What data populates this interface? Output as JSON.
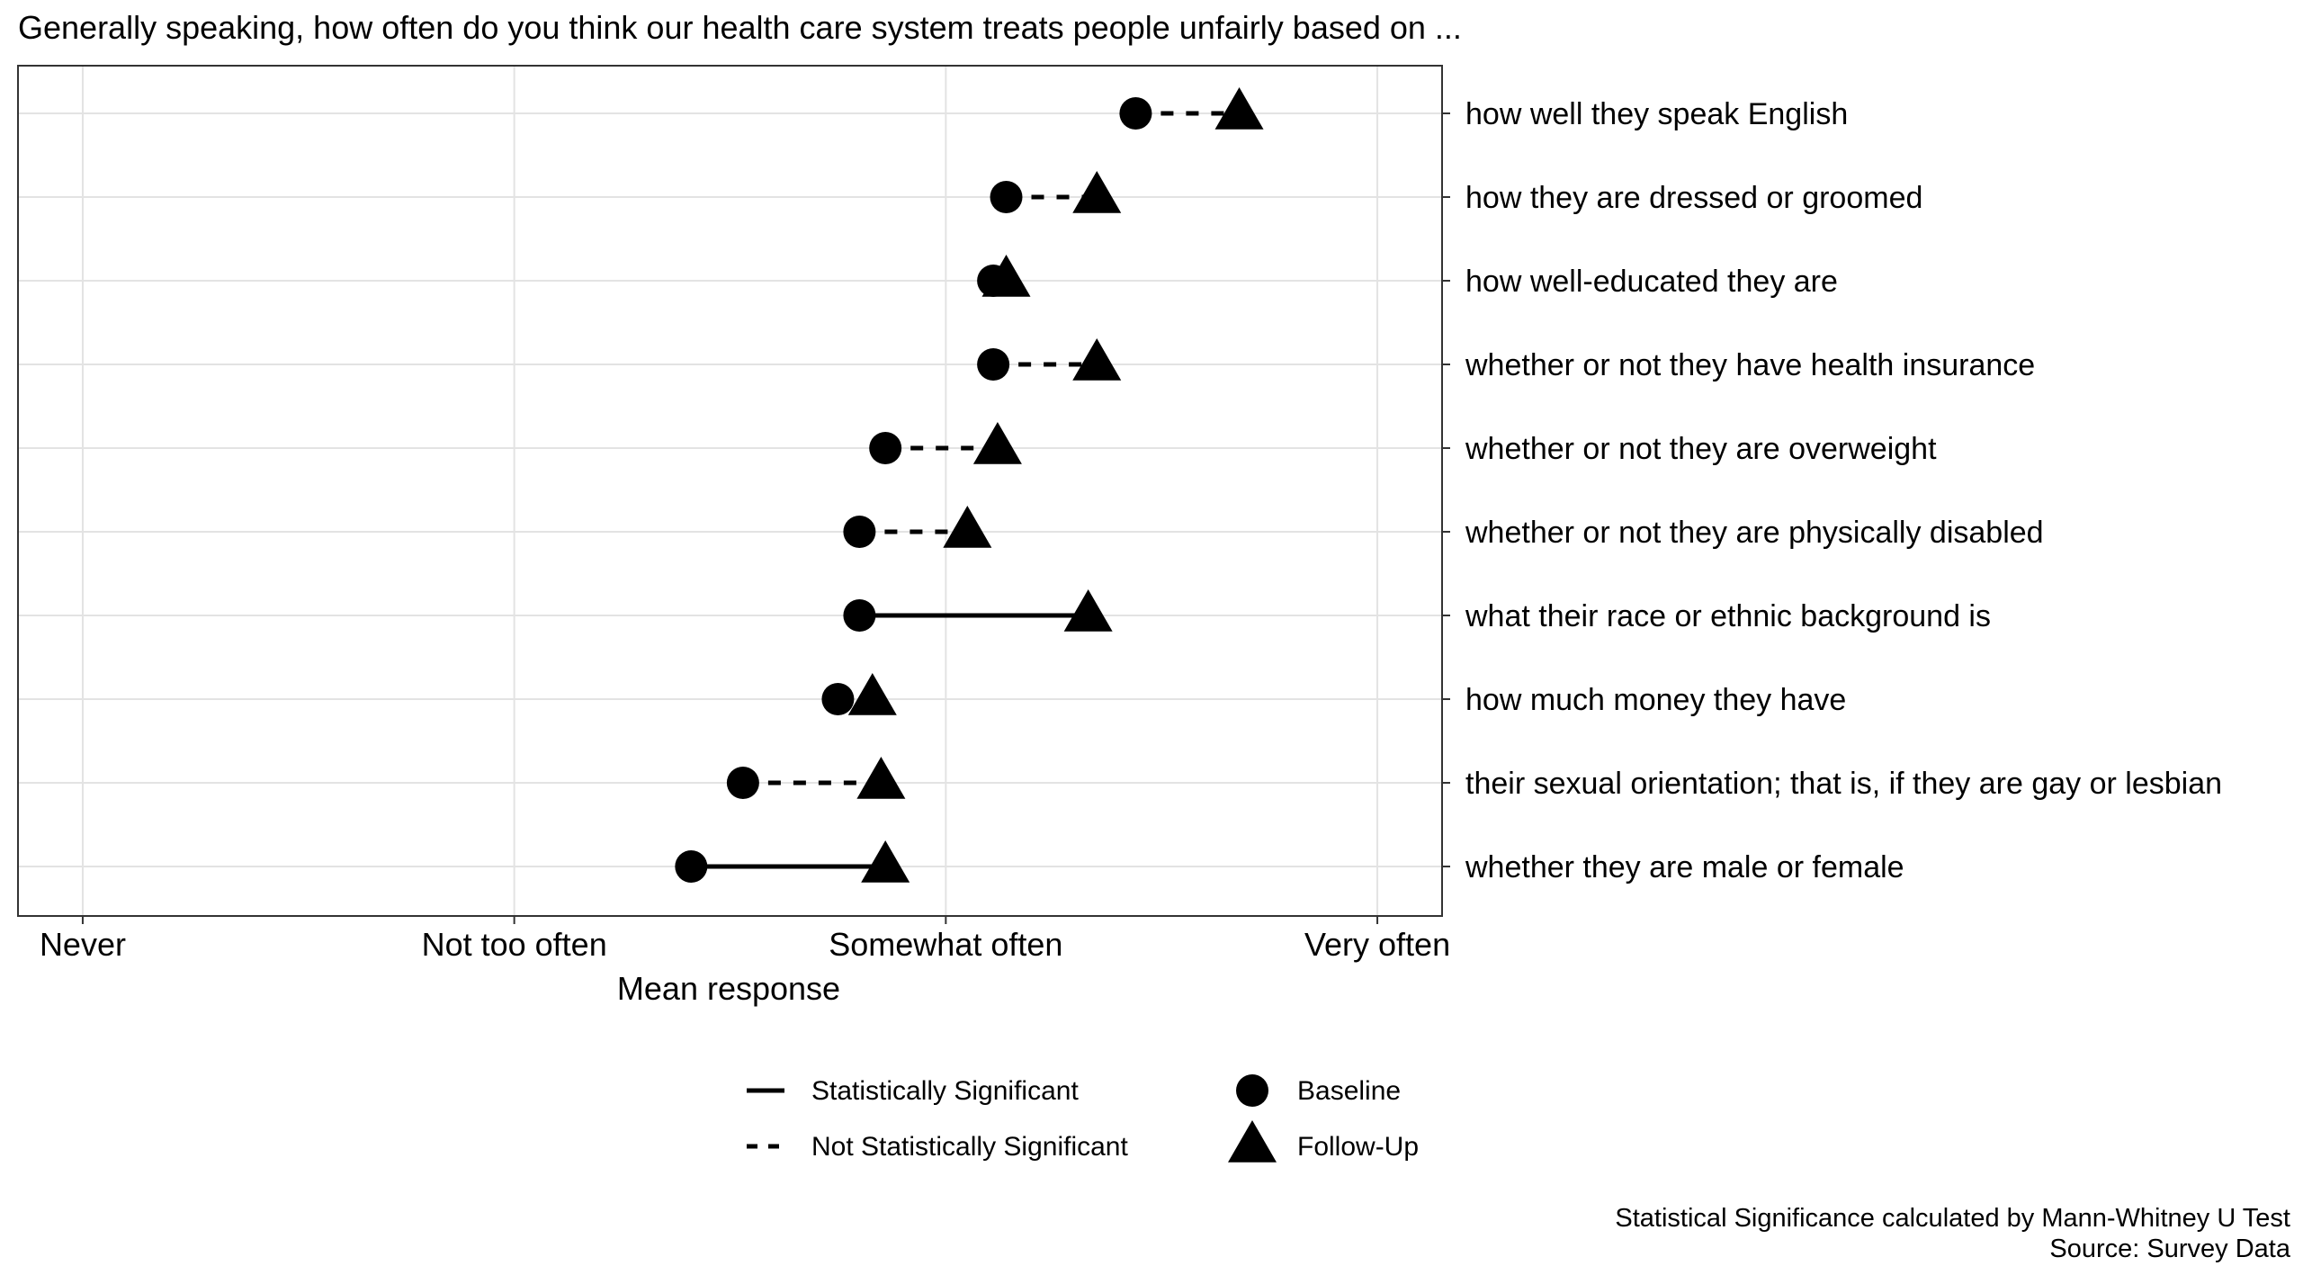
{
  "chart_data": {
    "type": "dumbbell",
    "title": "Generally speaking, how often do you think our health care system treats people unfairly based on ...",
    "xlabel": "Mean response",
    "xlim": [
      0.85,
      4.15
    ],
    "x_ticks": [
      {
        "value": 1,
        "label": "Never"
      },
      {
        "value": 2,
        "label": "Not too often"
      },
      {
        "value": 3,
        "label": "Somewhat often"
      },
      {
        "value": 4,
        "label": "Very often"
      }
    ],
    "grid": true,
    "categories": [
      "whether they are male or female",
      "their sexual orientation; that is, if they are gay or lesbian",
      "how much money they have",
      "what their race or ethnic background is",
      "whether or not they are physically disabled",
      "whether or not they are overweight",
      "whether or not they have health insurance",
      "how well-educated they are",
      "how they are dressed or groomed",
      "how well they speak English"
    ],
    "series": [
      {
        "name": "Baseline",
        "marker": "circle",
        "values": [
          2.41,
          2.53,
          2.75,
          2.8,
          2.8,
          2.86,
          3.11,
          3.11,
          3.14,
          3.44
        ]
      },
      {
        "name": "Follow-Up",
        "marker": "triangle",
        "values": [
          2.86,
          2.85,
          2.83,
          3.33,
          3.05,
          3.12,
          3.35,
          3.14,
          3.35,
          3.68
        ]
      }
    ],
    "significant": [
      true,
      false,
      false,
      true,
      false,
      false,
      false,
      false,
      false,
      false
    ],
    "legend": {
      "placement": "bottom",
      "line_items": [
        {
          "label": "Statistically Significant",
          "style": "solid"
        },
        {
          "label": "Not Statistically Significant",
          "style": "dashed"
        }
      ],
      "marker_items": [
        {
          "label": "Baseline",
          "marker": "circle"
        },
        {
          "label": "Follow-Up",
          "marker": "triangle"
        }
      ]
    },
    "caption": [
      "Statistical Significance calculated by Mann-Whitney U Test",
      "Source: Survey Data"
    ]
  }
}
